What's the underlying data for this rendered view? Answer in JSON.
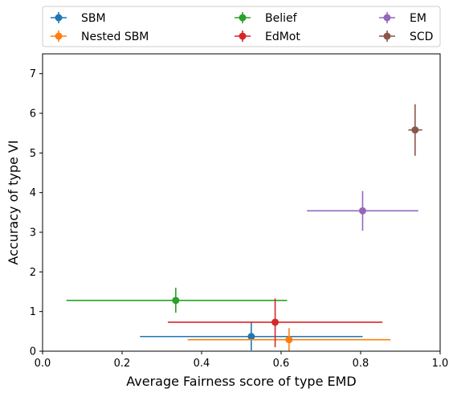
{
  "chart_data": {
    "type": "errorbar-scatter",
    "xlabel": "Average Fairness score of type EMD",
    "ylabel": "Accuracy of type VI",
    "xlim": [
      0.0,
      1.0
    ],
    "ylim": [
      0.0,
      7.5
    ],
    "xticks": [
      "0.0",
      "0.2",
      "0.4",
      "0.6",
      "0.8",
      "1.0"
    ],
    "yticks": [
      "0",
      "1",
      "2",
      "3",
      "4",
      "5",
      "6",
      "7"
    ],
    "xtick_values": [
      0.0,
      0.2,
      0.4,
      0.6,
      0.8,
      1.0
    ],
    "ytick_values": [
      0,
      1,
      2,
      3,
      4,
      5,
      6,
      7
    ],
    "grid": false,
    "legend_position": "above plot, 3 columns",
    "series": [
      {
        "name": "SBM",
        "color": "#1f77b4",
        "x": 0.525,
        "y": 0.37,
        "x_err": [
          0.245,
          0.805
        ],
        "y_err": [
          0.02,
          0.73
        ]
      },
      {
        "name": "Nested SBM",
        "color": "#ff7f0e",
        "x": 0.62,
        "y": 0.29,
        "x_err": [
          0.365,
          0.875
        ],
        "y_err": [
          0.0,
          0.58
        ]
      },
      {
        "name": "Belief",
        "color": "#2ca02c",
        "x": 0.335,
        "y": 1.28,
        "x_err": [
          0.06,
          0.615
        ],
        "y_err": [
          0.97,
          1.6
        ]
      },
      {
        "name": "EdMot",
        "color": "#d62728",
        "x": 0.585,
        "y": 0.73,
        "x_err": [
          0.315,
          0.855
        ],
        "y_err": [
          0.1,
          1.33
        ]
      },
      {
        "name": "EM",
        "color": "#9467bd",
        "x": 0.805,
        "y": 3.54,
        "x_err": [
          0.665,
          0.945
        ],
        "y_err": [
          3.04,
          4.04
        ]
      },
      {
        "name": "SCD",
        "color": "#8c564b",
        "x": 0.937,
        "y": 5.58,
        "x_err": [
          0.92,
          0.955
        ],
        "y_err": [
          4.93,
          6.23
        ]
      }
    ]
  }
}
